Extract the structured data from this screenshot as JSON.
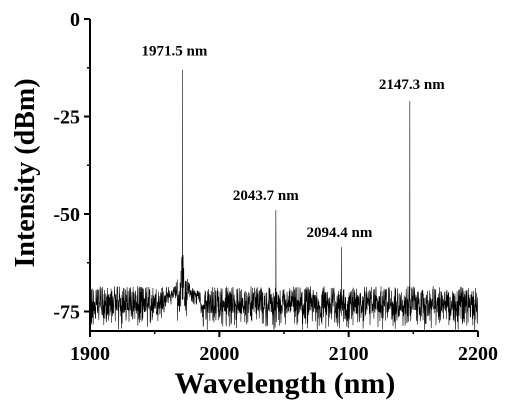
{
  "chart_data": {
    "type": "line",
    "xlabel": "Wavelength (nm)",
    "ylabel": "Intensity (dBm)",
    "xlim": [
      1900,
      2200
    ],
    "ylim": [
      -80,
      0
    ],
    "xticks": [
      1900,
      2000,
      2100,
      2200
    ],
    "yticks": [
      0,
      -25,
      -50,
      -75
    ],
    "xtick_labels": [
      "1900",
      "2000",
      "2100",
      "2200"
    ],
    "ytick_labels": [
      "0",
      "-25",
      "-50",
      "-75"
    ],
    "grid": false,
    "noise_floor_dBm": -72,
    "peaks": [
      {
        "label": "1971.5 nm",
        "x": 1971.5,
        "y": -13
      },
      {
        "label": "2043.7 nm",
        "x": 2043.7,
        "y": -49
      },
      {
        "label": "2094.4 nm",
        "x": 2094.4,
        "y": -58.5
      },
      {
        "label": "2147.3 nm",
        "x": 2147.3,
        "y": -21
      }
    ],
    "series": [
      {
        "values": []
      }
    ]
  }
}
